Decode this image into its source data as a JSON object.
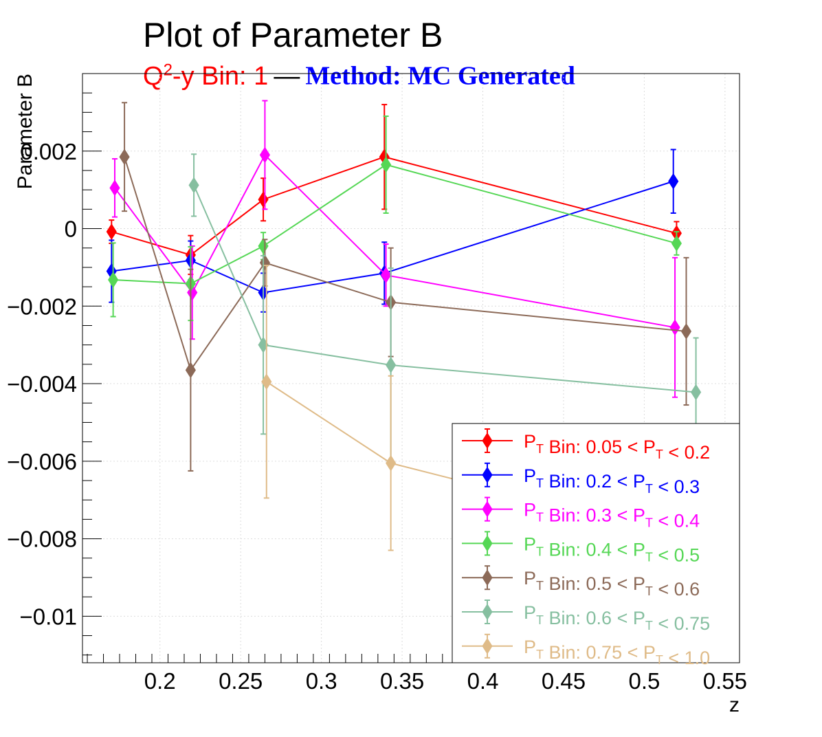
{
  "title": "Plot of Parameter B",
  "subtitle": {
    "bin_prefix": "Q",
    "bin_sup": "2",
    "bin_suffix": "-y Bin: 1",
    "dash": "—",
    "method": "Method: MC Generated",
    "bin_color": "#ff0000",
    "method_color": "#0000ff"
  },
  "chart_data": {
    "type": "scatter",
    "xlabel": "z",
    "ylabel": "Parameter B",
    "xlim": [
      0.152,
      0.559
    ],
    "ylim": [
      -0.0112,
      0.004
    ],
    "xticks": [
      {
        "value": 0.2,
        "label": "0.2"
      },
      {
        "value": 0.25,
        "label": "0.25"
      },
      {
        "value": 0.3,
        "label": "0.3"
      },
      {
        "value": 0.35,
        "label": "0.35"
      },
      {
        "value": 0.4,
        "label": "0.4"
      },
      {
        "value": 0.45,
        "label": "0.45"
      },
      {
        "value": 0.5,
        "label": "0.5"
      },
      {
        "value": 0.55,
        "label": "0.55"
      }
    ],
    "yticks": [
      {
        "value": 0.002,
        "label": "0.002"
      },
      {
        "value": 0,
        "label": "0"
      },
      {
        "value": -0.002,
        "label": "−0.002"
      },
      {
        "value": -0.004,
        "label": "−0.004"
      },
      {
        "value": -0.006,
        "label": "−0.006"
      },
      {
        "value": -0.008,
        "label": "−0.008"
      },
      {
        "value": -0.01,
        "label": "−0.01"
      }
    ],
    "grid": true,
    "legend_position": "bottom-right",
    "series": [
      {
        "name": "0.05 < P_T < 0.2",
        "legend_lo": "0.05",
        "legend_hi": "0.2",
        "color": "#ff0000",
        "points": [
          {
            "x": 0.17,
            "y": -8e-05,
            "err": 0.0003
          },
          {
            "x": 0.219,
            "y": -0.00068,
            "err": 0.0005
          },
          {
            "x": 0.264,
            "y": 0.00075,
            "err": 0.00055
          },
          {
            "x": 0.339,
            "y": 0.00185,
            "err": 0.00135
          },
          {
            "x": 0.52,
            "y": -0.00012,
            "err": 0.0003
          }
        ]
      },
      {
        "name": "0.2 < P_T < 0.3",
        "legend_lo": "0.2",
        "legend_hi": "0.3",
        "color": "#0000ff",
        "points": [
          {
            "x": 0.17,
            "y": -0.0011,
            "err": 0.0008
          },
          {
            "x": 0.219,
            "y": -0.00082,
            "err": 0.0005
          },
          {
            "x": 0.264,
            "y": -0.00165,
            "err": 0.0005
          },
          {
            "x": 0.339,
            "y": -0.00115,
            "err": 0.0008
          },
          {
            "x": 0.518,
            "y": 0.00122,
            "err": 0.00082
          }
        ]
      },
      {
        "name": "0.3 < P_T < 0.4",
        "legend_lo": "0.3",
        "legend_hi": "0.4",
        "color": "#ff00ff",
        "points": [
          {
            "x": 0.172,
            "y": 0.00105,
            "err": 0.00075
          },
          {
            "x": 0.22,
            "y": -0.00165,
            "err": 0.0012
          },
          {
            "x": 0.265,
            "y": 0.0019,
            "err": 0.0014
          },
          {
            "x": 0.34,
            "y": -0.0012,
            "err": 0.0008
          },
          {
            "x": 0.519,
            "y": -0.00255,
            "err": 0.0018
          }
        ]
      },
      {
        "name": "0.4 < P_T < 0.5",
        "legend_lo": "0.4",
        "legend_hi": "0.5",
        "color": "#55d755",
        "points": [
          {
            "x": 0.171,
            "y": -0.00132,
            "err": 0.00095
          },
          {
            "x": 0.219,
            "y": -0.00142,
            "err": 0.00095
          },
          {
            "x": 0.264,
            "y": -0.00045,
            "err": 0.00035
          },
          {
            "x": 0.34,
            "y": 0.00165,
            "err": 0.00125
          },
          {
            "x": 0.52,
            "y": -0.00038,
            "err": 0.0003
          }
        ]
      },
      {
        "name": "0.5 < P_T < 0.6",
        "legend_lo": "0.5",
        "legend_hi": "0.6",
        "color": "#8c6a58",
        "points": [
          {
            "x": 0.178,
            "y": 0.00185,
            "err": 0.0014
          },
          {
            "x": 0.219,
            "y": -0.00365,
            "err": 0.0026
          },
          {
            "x": 0.265,
            "y": -0.00088,
            "err": 0.0006
          },
          {
            "x": 0.343,
            "y": -0.0019,
            "err": 0.0014
          },
          {
            "x": 0.526,
            "y": -0.00265,
            "err": 0.0019
          }
        ]
      },
      {
        "name": "0.6 < P_T < 0.75",
        "legend_lo": "0.6",
        "legend_hi": "0.75",
        "color": "#86bfa0",
        "points": [
          {
            "x": 0.221,
            "y": 0.00112,
            "err": 0.0008
          },
          {
            "x": 0.264,
            "y": -0.003,
            "err": 0.0023
          },
          {
            "x": 0.343,
            "y": -0.00352,
            "err": 0.0025
          },
          {
            "x": 0.532,
            "y": -0.00422,
            "err": 0.0014
          }
        ]
      },
      {
        "name": "0.75 < P_T < 1.0",
        "legend_lo": "0.75",
        "legend_hi": "1.0",
        "color": "#dfbb88",
        "points": [
          {
            "x": 0.266,
            "y": -0.00395,
            "err": 0.003
          },
          {
            "x": 0.343,
            "y": -0.00605,
            "err": 0.00225
          },
          {
            "x": 0.395,
            "y": -0.0066,
            "err": 0
          }
        ]
      }
    ]
  },
  "legend_text": {
    "prefix": "P",
    "sub": "T",
    "bin_word": " Bin: ",
    "lt": " < P",
    "lt2": " < "
  }
}
